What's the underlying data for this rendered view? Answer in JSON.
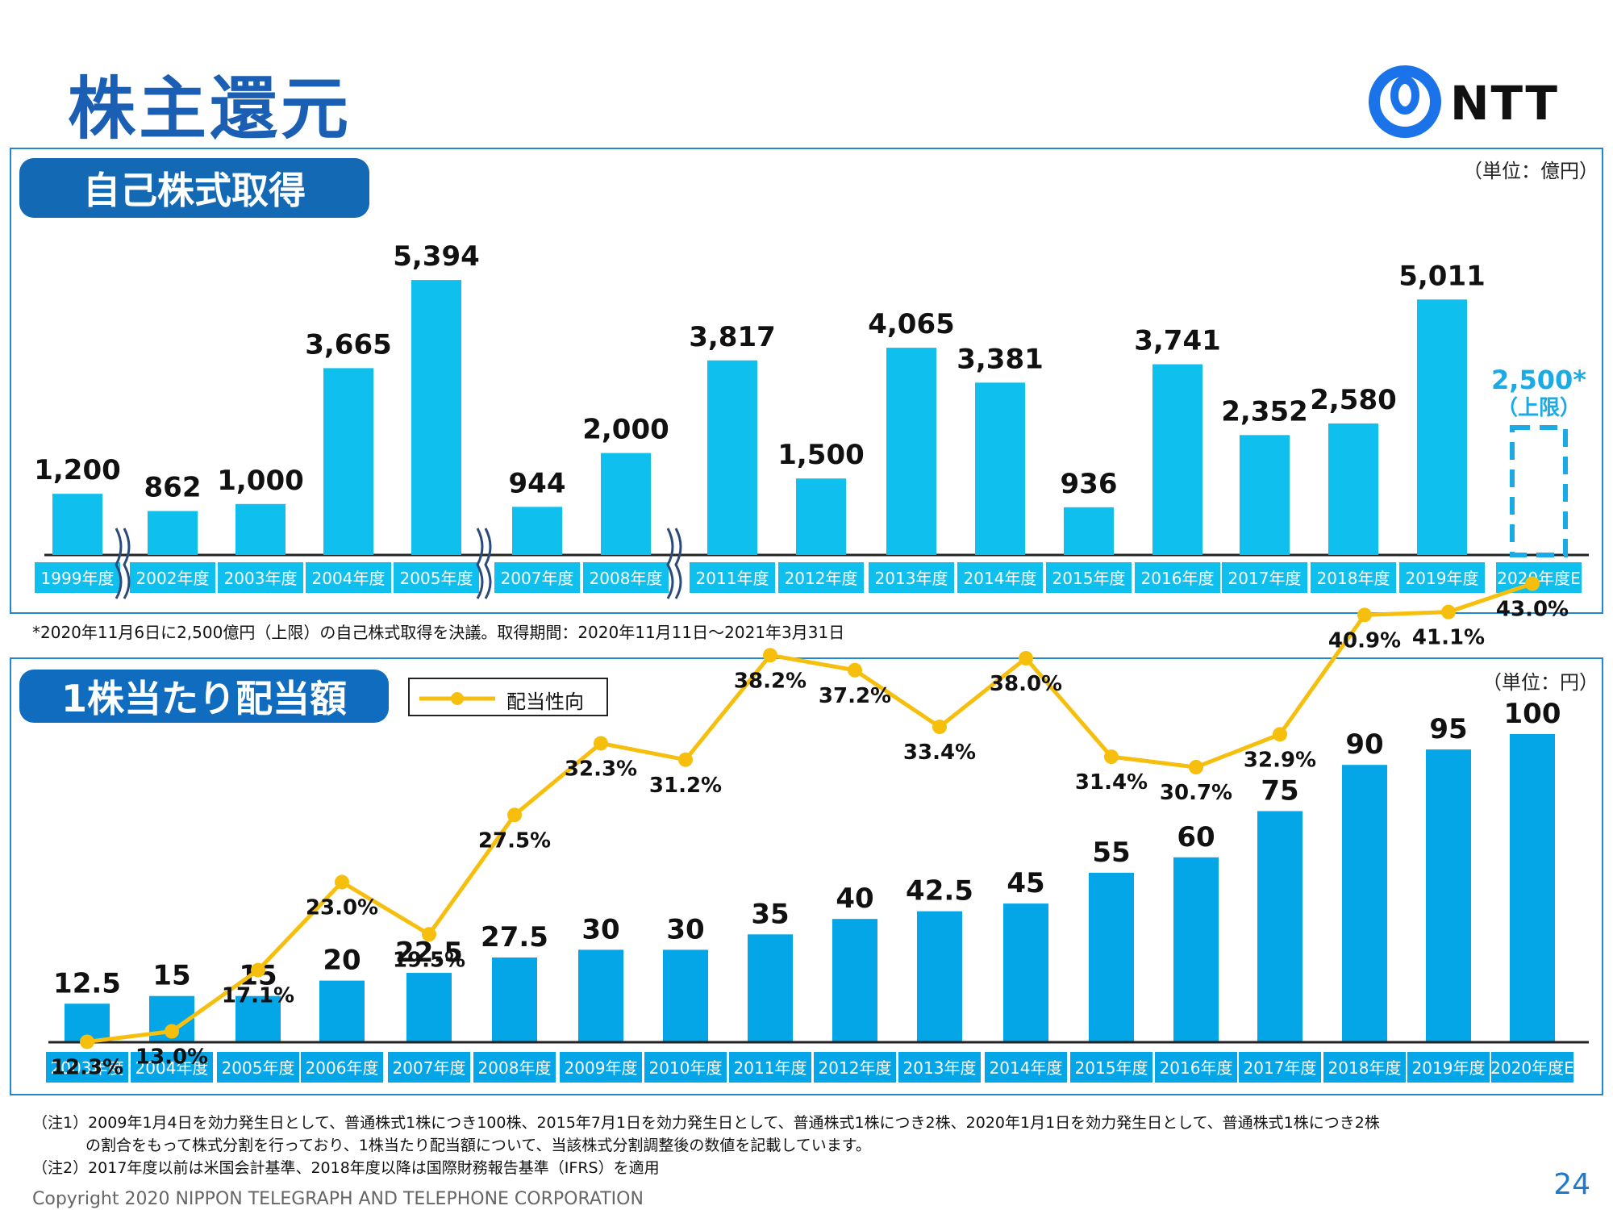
{
  "page": {
    "title": "株主還元",
    "logo_text": "NTT",
    "page_number": "24",
    "copyright": "Copyright 2020 NIPPON TELEGRAPH AND TELEPHONE CORPORATION"
  },
  "colors": {
    "bar": "#0fc0ee",
    "bar2": "#05a6e8",
    "line": "#f6bf0d",
    "title_blue": "#1a5fb4",
    "estimate": "#1aaae6"
  },
  "buyback": {
    "title": "自己株式取得",
    "unit": "（単位：億円）",
    "footnote": "*2020年11月6日に2,500億円（上限）の自己株式取得を決議。取得期間：2020年11月11日～2021年3月31日",
    "estimate_value_label": "2,500*",
    "estimate_note": "（上限）"
  },
  "dividend": {
    "title": "1株当たり配当額",
    "unit": "（単位：円）",
    "legend_label": "配当性向"
  },
  "notes": [
    "（注1）2009年1月4日を効力発生日として、普通株式1株につき100株、2015年7月1日を効力発生日として、普通株式1株につき2株、2020年1月1日を効力発生日として、普通株式1株につき2株",
    "の割合をもって株式分割を行っており、1株当たり配当額について、当該株式分割調整後の数値を記載しています。",
    "（注2）2017年度以前は米国会計基準、2018年度以降は国際財務報告基準（IFRS）を適用"
  ],
  "chart_data": [
    {
      "type": "bar",
      "title": "自己株式取得",
      "unit": "億円",
      "categories": [
        "1999年度",
        "2002年度",
        "2003年度",
        "2004年度",
        "2005年度",
        "2007年度",
        "2008年度",
        "2011年度",
        "2012年度",
        "2013年度",
        "2014年度",
        "2015年度",
        "2016年度",
        "2017年度",
        "2018年度",
        "2019年度",
        "2020年度E"
      ],
      "values": [
        1200,
        862,
        1000,
        3665,
        5394,
        944,
        2000,
        3817,
        1500,
        4065,
        3381,
        936,
        3741,
        2352,
        2580,
        5011,
        2500
      ],
      "value_labels": [
        "1,200",
        "862",
        "1,000",
        "3,665",
        "5,394",
        "944",
        "2,000",
        "3,817",
        "1,500",
        "4,065",
        "3,381",
        "936",
        "3,741",
        "2,352",
        "2,580",
        "5,011",
        "2,500*"
      ],
      "estimate_index": 16,
      "axis_breaks_after": [
        "1999年度",
        "2005年度",
        "2008年度"
      ]
    },
    {
      "type": "bar",
      "title": "1株当たり配当額",
      "unit": "円",
      "categories": [
        "2003年度",
        "2004年度",
        "2005年度",
        "2006年度",
        "2007年度",
        "2008年度",
        "2009年度",
        "2010年度",
        "2011年度",
        "2012年度",
        "2013年度",
        "2014年度",
        "2015年度",
        "2016年度",
        "2017年度",
        "2018年度",
        "2019年度",
        "2020年度E"
      ],
      "values": [
        12.5,
        15,
        15,
        20,
        22.5,
        27.5,
        30,
        30,
        35,
        40,
        42.5,
        45,
        55,
        60,
        75,
        90,
        95,
        100
      ],
      "value_labels": [
        "12.5",
        "15",
        "15",
        "20",
        "22.5",
        "27.5",
        "30",
        "30",
        "35",
        "40",
        "42.5",
        "45",
        "55",
        "60",
        "75",
        "90",
        "95",
        "100"
      ],
      "series": [
        {
          "name": "配当性向",
          "type": "line",
          "values": [
            12.3,
            13.0,
            17.1,
            23.0,
            19.5,
            27.5,
            32.3,
            31.2,
            38.2,
            37.2,
            33.4,
            38.0,
            31.4,
            30.7,
            32.9,
            40.9,
            41.1,
            43.0
          ],
          "value_labels": [
            "12.3%",
            "13.0%",
            "17.1%",
            "23.0%",
            "19.5%",
            "27.5%",
            "32.3%",
            "31.2%",
            "38.2%",
            "37.2%",
            "33.4%",
            "38.0%",
            "31.4%",
            "30.7%",
            "32.9%",
            "40.9%",
            "41.1%",
            "43.0%"
          ]
        }
      ]
    }
  ]
}
